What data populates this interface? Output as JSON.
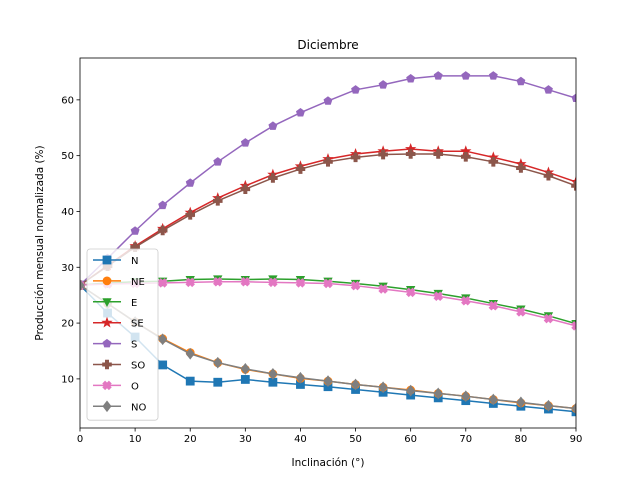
{
  "chart_data": {
    "type": "line",
    "title": "Diciembre",
    "xlabel": "Inclinación (°)",
    "ylabel": "Producción mensual normalizada (%)",
    "xlim": [
      0,
      90
    ],
    "ylim": [
      1.2,
      67.5
    ],
    "xticks": [
      0,
      10,
      20,
      30,
      40,
      50,
      60,
      70,
      80,
      90
    ],
    "yticks": [
      10,
      20,
      30,
      40,
      50,
      60
    ],
    "grid": false,
    "legend_position": "lower-left",
    "x": [
      0,
      5,
      10,
      15,
      20,
      25,
      30,
      35,
      40,
      45,
      50,
      55,
      60,
      65,
      70,
      75,
      80,
      85,
      90
    ],
    "series": [
      {
        "name": "N",
        "color": "#1f77b4",
        "marker": "square",
        "values": [
          26.8,
          21.8,
          17.5,
          12.5,
          9.6,
          9.4,
          9.9,
          9.4,
          9.0,
          8.6,
          8.1,
          7.6,
          7.1,
          6.6,
          6.1,
          5.6,
          5.1,
          4.6,
          4.1
        ]
      },
      {
        "name": "NE",
        "color": "#ff7f0e",
        "marker": "circle",
        "values": [
          26.8,
          23.5,
          20.2,
          17.2,
          14.7,
          12.9,
          11.7,
          10.9,
          10.1,
          9.6,
          9.0,
          8.5,
          8.0,
          7.4,
          6.9,
          6.3,
          5.7,
          5.2,
          4.7
        ]
      },
      {
        "name": "E",
        "color": "#2ca02c",
        "marker": "triangle-down",
        "values": [
          26.8,
          27.2,
          27.4,
          27.5,
          27.8,
          27.9,
          27.8,
          27.9,
          27.8,
          27.5,
          27.1,
          26.6,
          26.0,
          25.3,
          24.5,
          23.5,
          22.5,
          21.3,
          19.9
        ]
      },
      {
        "name": "SE",
        "color": "#d62728",
        "marker": "star",
        "values": [
          26.8,
          30.3,
          33.8,
          36.9,
          39.8,
          42.4,
          44.6,
          46.6,
          48.1,
          49.4,
          50.3,
          50.8,
          51.2,
          50.8,
          50.8,
          49.7,
          48.5,
          47.0,
          45.3
        ]
      },
      {
        "name": "S",
        "color": "#9467bd",
        "marker": "pentagon",
        "values": [
          26.8,
          31.6,
          36.5,
          41.1,
          45.1,
          48.9,
          52.3,
          55.3,
          57.7,
          59.8,
          61.8,
          62.7,
          63.8,
          64.3,
          64.3,
          64.3,
          63.3,
          61.8,
          60.3
        ]
      },
      {
        "name": "SO",
        "color": "#8c564b",
        "marker": "plus",
        "values": [
          26.8,
          30.2,
          33.6,
          36.6,
          39.4,
          41.9,
          44.0,
          46.0,
          47.6,
          48.9,
          49.7,
          50.2,
          50.3,
          50.3,
          49.8,
          48.9,
          47.8,
          46.4,
          44.6
        ]
      },
      {
        "name": "O",
        "color": "#e377c2",
        "marker": "x",
        "values": [
          26.8,
          27.0,
          27.1,
          27.2,
          27.3,
          27.4,
          27.4,
          27.3,
          27.2,
          27.1,
          26.7,
          26.1,
          25.5,
          24.8,
          24.0,
          23.1,
          22.0,
          20.8,
          19.5
        ]
      },
      {
        "name": "NO",
        "color": "#7f7f7f",
        "marker": "diamond",
        "values": [
          26.8,
          23.5,
          20.2,
          17.1,
          14.5,
          12.9,
          11.8,
          10.9,
          10.2,
          9.6,
          9.0,
          8.5,
          7.9,
          7.4,
          6.9,
          6.3,
          5.8,
          5.2,
          4.7
        ]
      }
    ]
  }
}
